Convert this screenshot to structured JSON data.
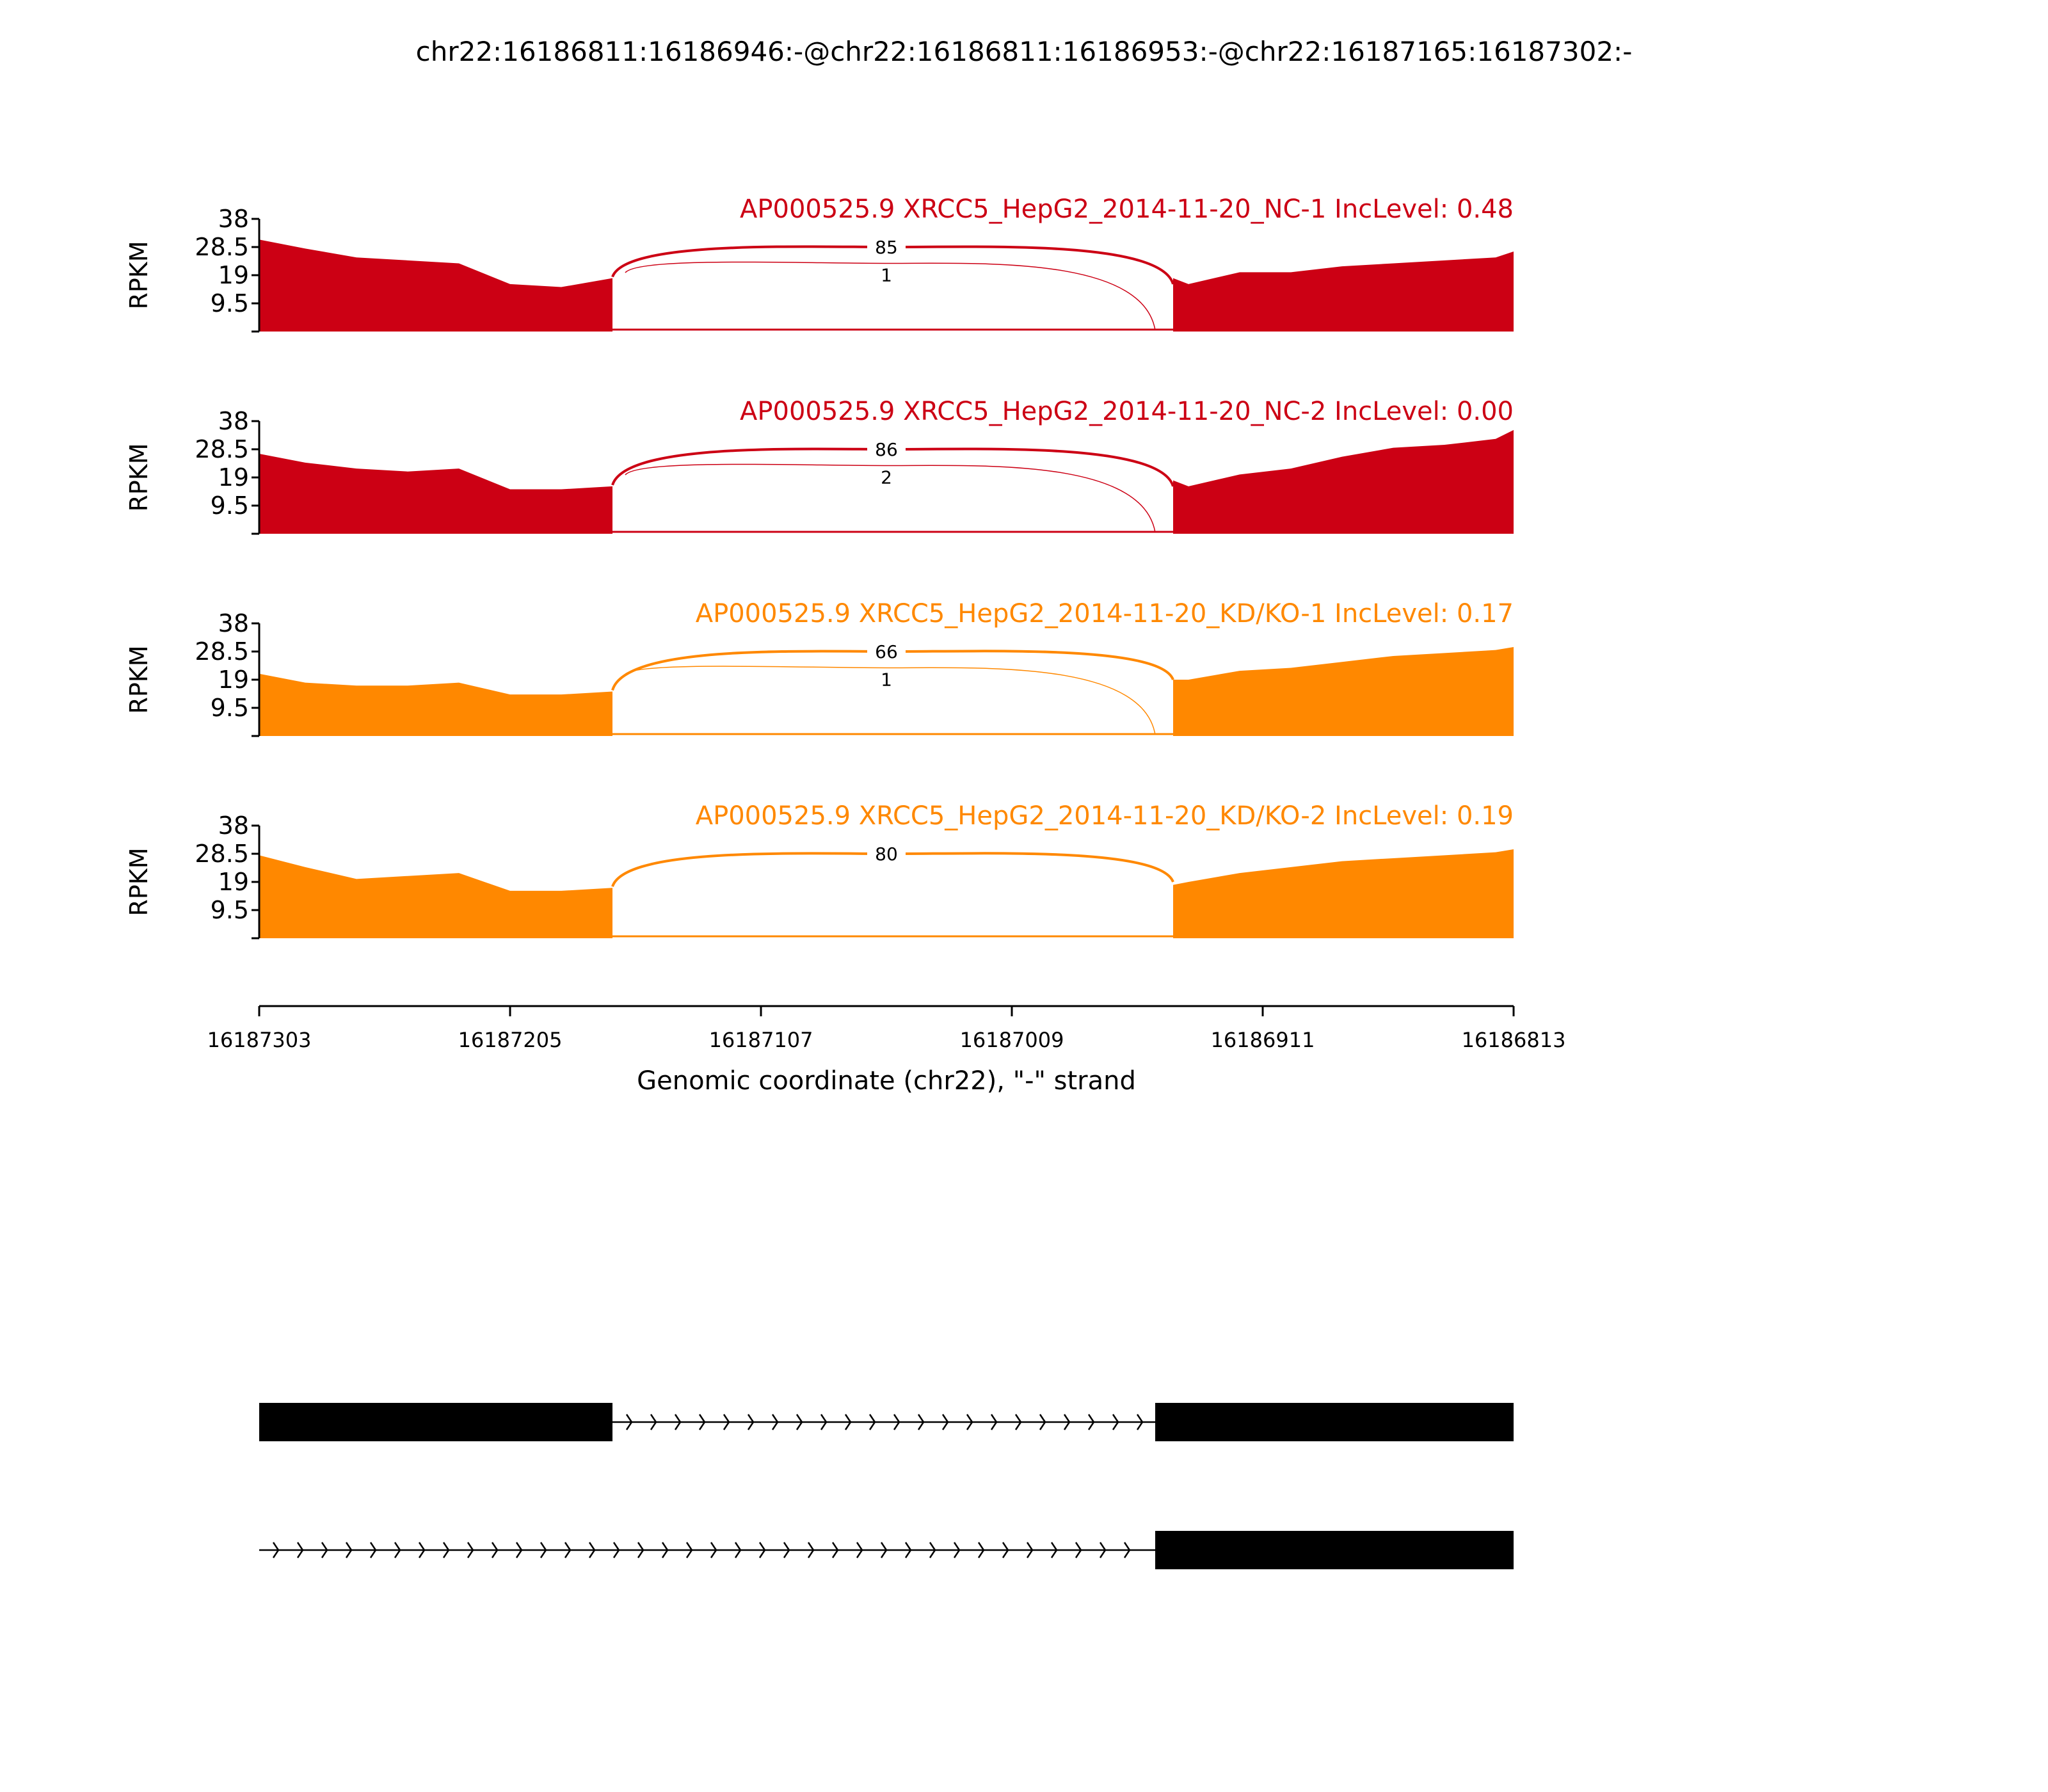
{
  "chart_data": {
    "type": "area",
    "title": "chr22:16186811:16186946:-@chr22:16186811:16186953:-@chr22:16187165:16187302:-",
    "ylabel": "RPKM",
    "xlabel": "Genomic coordinate (chr22), \"-\" strand",
    "ylim": [
      0,
      38
    ],
    "yticks": [
      "9.5",
      "19",
      "28.5",
      "38"
    ],
    "xlim": [
      16187303,
      16186813
    ],
    "xticks": [
      "16187303",
      "16187205",
      "16187107",
      "16187009",
      "16186911",
      "16186813"
    ],
    "colors": {
      "NC": "#cc0014",
      "KD": "#ff8800"
    },
    "x_positions": [
      16187303,
      16187285,
      16187265,
      16187245,
      16187225,
      16187205,
      16187185,
      16187165,
      16187160,
      16186946,
      16186940,
      16186920,
      16186900,
      16186880,
      16186860,
      16186840,
      16186820,
      16186813
    ],
    "samples": [
      {
        "label": "AP000525.9 XRCC5_HepG2_2014-11-20_NC-1 IncLevel: 0.48",
        "group": "NC",
        "coverage": [
          31,
          28,
          25,
          24,
          23,
          16,
          15,
          18,
          19,
          18,
          16,
          20,
          20,
          22,
          23,
          24,
          25,
          27
        ],
        "junctions": [
          {
            "from": 16187165,
            "to": 16186946,
            "reads": "85",
            "height": 28.5
          },
          {
            "from": 16187160,
            "to": 16186953,
            "reads": "1",
            "height": 23
          }
        ]
      },
      {
        "label": "AP000525.9 XRCC5_HepG2_2014-11-20_NC-2 IncLevel: 0.00",
        "group": "NC",
        "coverage": [
          27,
          24,
          22,
          21,
          22,
          15,
          15,
          16,
          19,
          18,
          16,
          20,
          22,
          26,
          29,
          30,
          32,
          35
        ],
        "junctions": [
          {
            "from": 16187165,
            "to": 16186946,
            "reads": "86",
            "height": 28.5
          },
          {
            "from": 16187160,
            "to": 16186953,
            "reads": "2",
            "height": 23
          }
        ]
      },
      {
        "label": "AP000525.9 XRCC5_HepG2_2014-11-20_KD/KO-1 IncLevel: 0.17",
        "group": "KD",
        "coverage": [
          21,
          18,
          17,
          17,
          18,
          14,
          14,
          15,
          20,
          19,
          19,
          22,
          23,
          25,
          27,
          28,
          29,
          30
        ],
        "junctions": [
          {
            "from": 16187165,
            "to": 16186946,
            "reads": "66",
            "height": 28.5
          },
          {
            "from": 16187160,
            "to": 16186953,
            "reads": "1",
            "height": 23
          }
        ]
      },
      {
        "label": "AP000525.9 XRCC5_HepG2_2014-11-20_KD/KO-2 IncLevel: 0.19",
        "group": "KD",
        "coverage": [
          28,
          24,
          20,
          21,
          22,
          16,
          16,
          17,
          19,
          18,
          19,
          22,
          24,
          26,
          27,
          28,
          29,
          30
        ],
        "junctions": [
          {
            "from": 16187165,
            "to": 16186946,
            "reads": "80",
            "height": 28.5
          }
        ]
      }
    ],
    "isoforms": [
      {
        "exons": [
          [
            16187303,
            16187165
          ],
          [
            16186953,
            16186813
          ]
        ],
        "intron": [
          16187165,
          16186953
        ]
      },
      {
        "exons": [
          [
            16186953,
            16186813
          ]
        ],
        "intron": [
          16187303,
          16186953
        ]
      }
    ]
  }
}
